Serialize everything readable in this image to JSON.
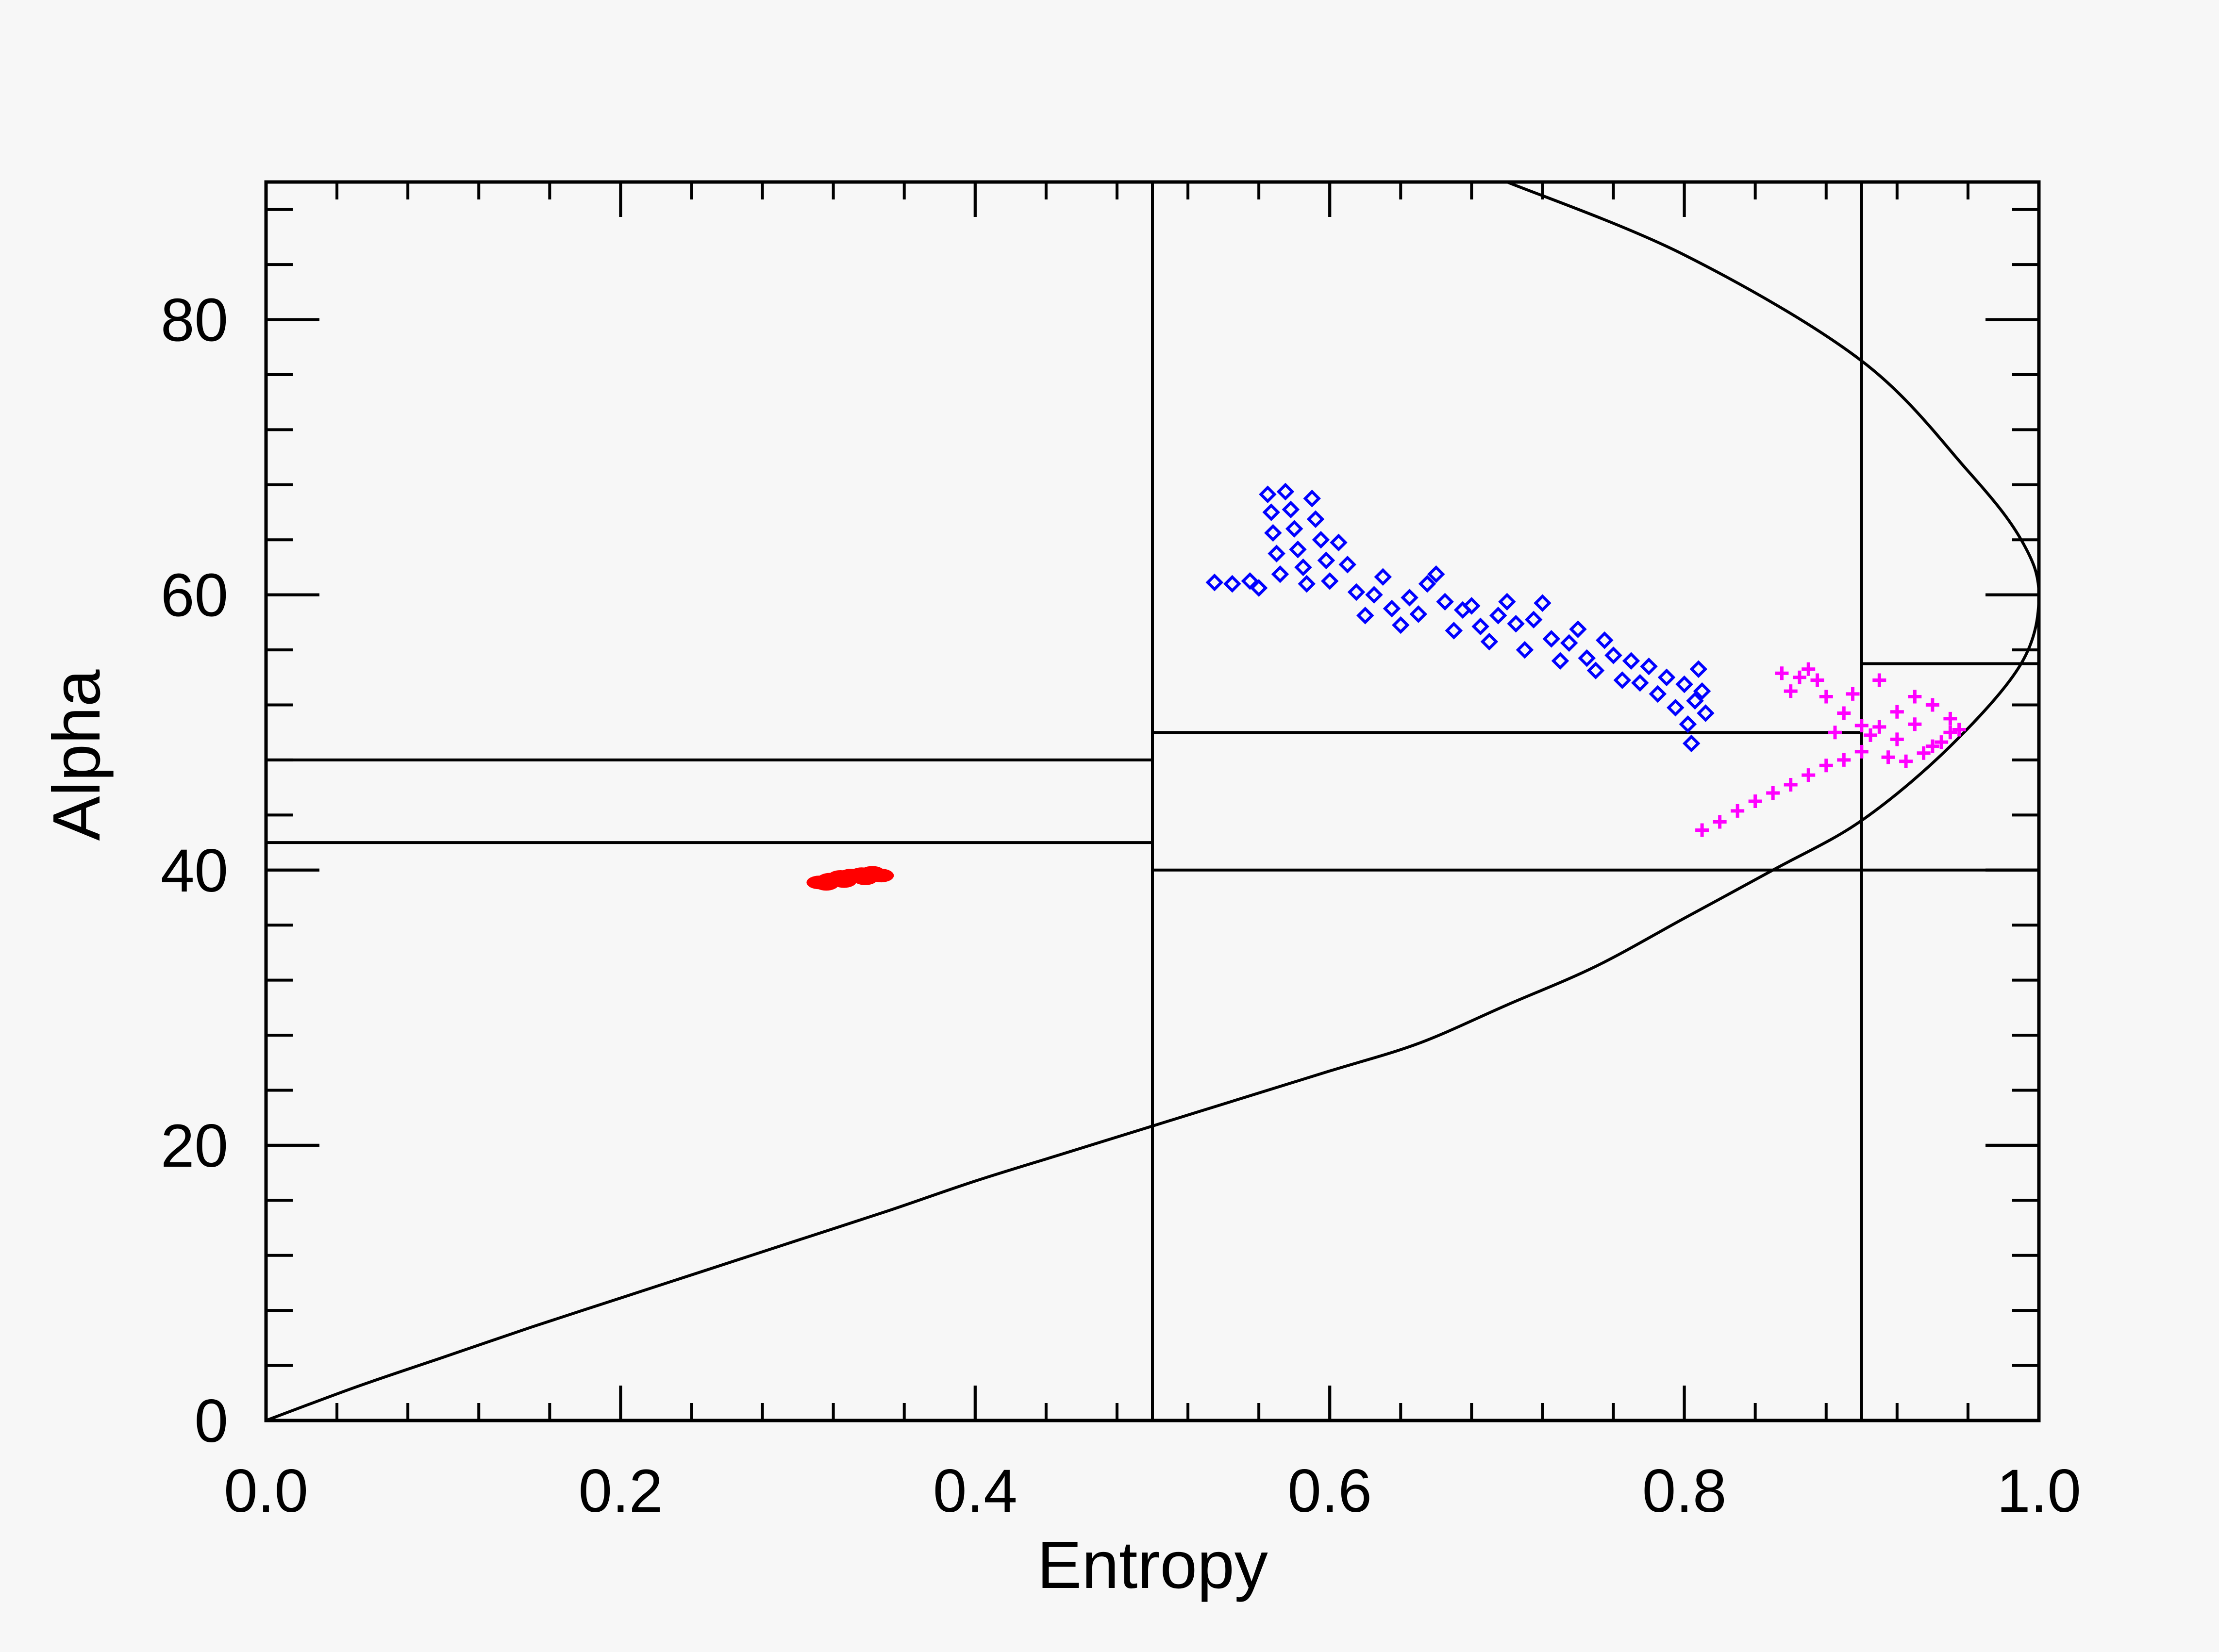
{
  "chart_data": {
    "type": "scatter",
    "title": "",
    "xlabel": "Entropy",
    "ylabel": "Alpha",
    "xlim": [
      0.0,
      1.0
    ],
    "ylim": [
      0,
      90
    ],
    "x_ticks": [
      {
        "value": 0.0,
        "label": "0.0"
      },
      {
        "value": 0.2,
        "label": "0.2"
      },
      {
        "value": 0.4,
        "label": "0.4"
      },
      {
        "value": 0.6,
        "label": "0.6"
      },
      {
        "value": 0.8,
        "label": "0.8"
      },
      {
        "value": 1.0,
        "label": "1.0"
      }
    ],
    "y_ticks": [
      {
        "value": 0,
        "label": "0"
      },
      {
        "value": 20,
        "label": "20"
      },
      {
        "value": 40,
        "label": "40"
      },
      {
        "value": 60,
        "label": "60"
      },
      {
        "value": 80,
        "label": "80"
      }
    ],
    "x_minor_step": 0.04,
    "y_minor_step": 4,
    "grid": false,
    "zone_boundaries": {
      "vertical": [
        0.5,
        0.9
      ],
      "horizontal_segments": [
        {
          "y": 48,
          "x_from": 0.0,
          "x_to": 0.5
        },
        {
          "y": 42,
          "x_from": 0.0,
          "x_to": 0.5
        },
        {
          "y": 50,
          "x_from": 0.5,
          "x_to": 0.9
        },
        {
          "y": 40,
          "x_from": 0.5,
          "x_to": 1.0
        },
        {
          "y": 55,
          "x_from": 0.9,
          "x_to": 1.0
        }
      ]
    },
    "boundary_curve": [
      [
        0.0,
        0.0
      ],
      [
        0.05,
        2.4
      ],
      [
        0.1,
        4.6
      ],
      [
        0.15,
        6.8
      ],
      [
        0.2,
        8.9
      ],
      [
        0.25,
        11.0
      ],
      [
        0.3,
        13.1
      ],
      [
        0.35,
        15.2
      ],
      [
        0.4,
        17.4
      ],
      [
        0.45,
        19.4
      ],
      [
        0.5,
        21.4
      ],
      [
        0.55,
        23.4
      ],
      [
        0.6,
        25.4
      ],
      [
        0.65,
        27.4
      ],
      [
        0.7,
        30.2
      ],
      [
        0.75,
        33.0
      ],
      [
        0.8,
        36.5
      ],
      [
        0.85,
        40.0
      ],
      [
        0.9,
        43.6
      ],
      [
        0.95,
        49.0
      ],
      [
        0.99,
        55.0
      ],
      [
        1.0,
        60.0
      ],
      [
        0.99,
        64.0
      ],
      [
        0.96,
        69.0
      ],
      [
        0.9,
        77.0
      ],
      [
        0.8,
        84.7
      ],
      [
        0.7,
        90.0
      ]
    ],
    "series": [
      {
        "color": "#ff0000",
        "marker": "filled",
        "points": [
          [
            0.312,
            39.1
          ],
          [
            0.318,
            39.3
          ],
          [
            0.324,
            39.5
          ],
          [
            0.33,
            39.6
          ],
          [
            0.336,
            39.7
          ],
          [
            0.342,
            39.8
          ],
          [
            0.347,
            39.6
          ],
          [
            0.316,
            39.0
          ],
          [
            0.326,
            39.2
          ],
          [
            0.338,
            39.4
          ]
        ]
      },
      {
        "color": "#0000ff",
        "marker": "diamond",
        "points": [
          [
            0.535,
            60.9
          ],
          [
            0.545,
            60.8
          ],
          [
            0.555,
            61.0
          ],
          [
            0.56,
            60.5
          ],
          [
            0.565,
            67.3
          ],
          [
            0.567,
            66.0
          ],
          [
            0.568,
            64.5
          ],
          [
            0.57,
            63.0
          ],
          [
            0.572,
            61.5
          ],
          [
            0.575,
            67.5
          ],
          [
            0.578,
            66.2
          ],
          [
            0.58,
            64.8
          ],
          [
            0.582,
            63.3
          ],
          [
            0.585,
            62.0
          ],
          [
            0.587,
            60.8
          ],
          [
            0.59,
            67.0
          ],
          [
            0.592,
            65.5
          ],
          [
            0.595,
            64.0
          ],
          [
            0.598,
            62.5
          ],
          [
            0.6,
            61.0
          ],
          [
            0.605,
            63.8
          ],
          [
            0.61,
            62.2
          ],
          [
            0.615,
            60.2
          ],
          [
            0.62,
            58.5
          ],
          [
            0.625,
            60.0
          ],
          [
            0.63,
            61.3
          ],
          [
            0.635,
            59.0
          ],
          [
            0.64,
            57.8
          ],
          [
            0.645,
            59.8
          ],
          [
            0.65,
            58.6
          ],
          [
            0.655,
            60.8
          ],
          [
            0.66,
            61.5
          ],
          [
            0.665,
            59.5
          ],
          [
            0.67,
            57.4
          ],
          [
            0.675,
            58.9
          ],
          [
            0.68,
            59.2
          ],
          [
            0.685,
            57.7
          ],
          [
            0.69,
            56.6
          ],
          [
            0.695,
            58.5
          ],
          [
            0.7,
            59.5
          ],
          [
            0.705,
            57.9
          ],
          [
            0.71,
            56.0
          ],
          [
            0.715,
            58.2
          ],
          [
            0.72,
            59.4
          ],
          [
            0.725,
            56.8
          ],
          [
            0.73,
            55.2
          ],
          [
            0.735,
            56.5
          ],
          [
            0.74,
            57.5
          ],
          [
            0.745,
            55.4
          ],
          [
            0.75,
            54.5
          ],
          [
            0.755,
            56.7
          ],
          [
            0.76,
            55.6
          ],
          [
            0.765,
            53.8
          ],
          [
            0.77,
            55.2
          ],
          [
            0.775,
            53.6
          ],
          [
            0.78,
            54.8
          ],
          [
            0.785,
            52.8
          ],
          [
            0.79,
            54.0
          ],
          [
            0.795,
            51.8
          ],
          [
            0.8,
            53.5
          ],
          [
            0.802,
            50.6
          ],
          [
            0.804,
            49.2
          ],
          [
            0.806,
            52.3
          ],
          [
            0.808,
            54.6
          ],
          [
            0.81,
            53.0
          ],
          [
            0.812,
            51.4
          ]
        ]
      },
      {
        "color": "#ff00ff",
        "marker": "plus",
        "points": [
          [
            0.81,
            42.9
          ],
          [
            0.82,
            43.5
          ],
          [
            0.83,
            44.3
          ],
          [
            0.84,
            45.0
          ],
          [
            0.85,
            45.6
          ],
          [
            0.86,
            46.2
          ],
          [
            0.87,
            46.9
          ],
          [
            0.88,
            47.6
          ],
          [
            0.89,
            48.0
          ],
          [
            0.9,
            48.6
          ],
          [
            0.905,
            49.8
          ],
          [
            0.91,
            50.4
          ],
          [
            0.92,
            51.5
          ],
          [
            0.93,
            52.6
          ],
          [
            0.94,
            52.0
          ],
          [
            0.95,
            51.0
          ],
          [
            0.955,
            50.2
          ],
          [
            0.945,
            49.3
          ],
          [
            0.935,
            48.5
          ],
          [
            0.925,
            47.9
          ],
          [
            0.915,
            48.2
          ],
          [
            0.9,
            50.5
          ],
          [
            0.89,
            51.4
          ],
          [
            0.88,
            52.6
          ],
          [
            0.875,
            53.8
          ],
          [
            0.87,
            54.6
          ],
          [
            0.865,
            54.0
          ],
          [
            0.86,
            53.0
          ],
          [
            0.855,
            54.3
          ],
          [
            0.885,
            50.0
          ],
          [
            0.895,
            52.8
          ],
          [
            0.91,
            53.8
          ],
          [
            0.92,
            49.5
          ],
          [
            0.93,
            50.6
          ],
          [
            0.94,
            49.0
          ],
          [
            0.95,
            50.0
          ]
        ]
      }
    ]
  }
}
